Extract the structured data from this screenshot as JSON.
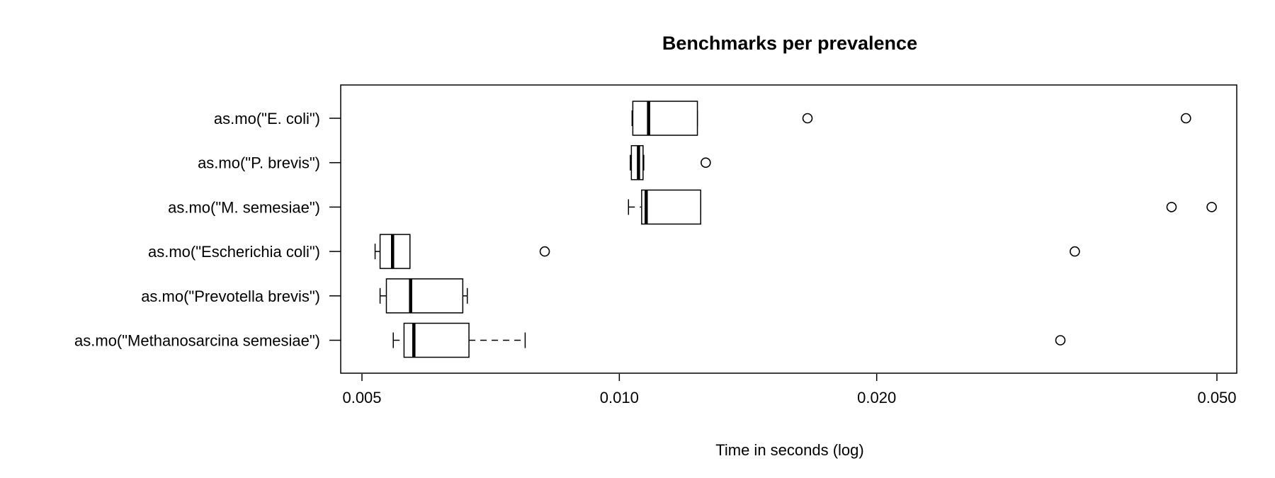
{
  "chart_data": {
    "type": "boxplot",
    "title": "Benchmarks per prevalence",
    "xlabel": "Time in seconds (log)",
    "ylabel": "",
    "x_scale": "log",
    "xlim": [
      0.0048,
      0.0555
    ],
    "x_ticks": [
      0.005,
      0.01,
      0.02,
      0.05
    ],
    "x_tick_labels": [
      "0.005",
      "0.010",
      "0.020",
      "0.050"
    ],
    "grid": false,
    "categories": [
      "as.mo(\"E. coli\")",
      "as.mo(\"P. brevis\")",
      "as.mo(\"M. semesiae\")",
      "as.mo(\"Escherichia coli\")",
      "as.mo(\"Prevotella brevis\")",
      "as.mo(\"Methanosarcina semesiae\")"
    ],
    "boxes": [
      {
        "whisker_low": 0.01035,
        "q1": 0.01037,
        "median": 0.01082,
        "q3": 0.01234,
        "whisker_high": 0.01234,
        "outliers": [
          0.0166,
          0.046
        ]
      },
      {
        "whisker_low": 0.0103,
        "q1": 0.01033,
        "median": 0.01053,
        "q3": 0.01066,
        "whisker_high": 0.01068,
        "outliers": [
          0.01262
        ]
      },
      {
        "whisker_low": 0.01025,
        "q1": 0.01062,
        "median": 0.01075,
        "q3": 0.01245,
        "whisker_high": 0.01245,
        "outliers": [
          0.04425,
          0.0493
        ]
      },
      {
        "whisker_low": 0.00518,
        "q1": 0.00525,
        "median": 0.00543,
        "q3": 0.00569,
        "whisker_high": 0.00569,
        "outliers": [
          0.00818,
          0.0341
        ]
      },
      {
        "whisker_low": 0.00525,
        "q1": 0.00534,
        "median": 0.0057,
        "q3": 0.00656,
        "whisker_high": 0.00664,
        "outliers": []
      },
      {
        "whisker_low": 0.00544,
        "q1": 0.0056,
        "median": 0.00575,
        "q3": 0.00667,
        "whisker_high": 0.00776,
        "outliers": [
          0.0328
        ]
      }
    ]
  }
}
